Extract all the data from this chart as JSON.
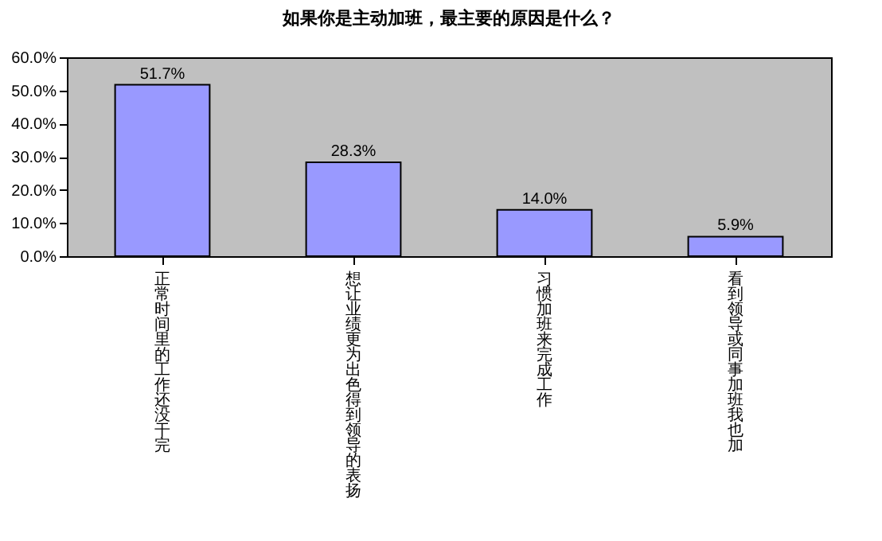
{
  "chart_data": {
    "type": "bar",
    "title": "如果你是主动加班，最主要的原因是什么？",
    "categories": [
      "正常时间里的工作还没干完",
      "想让业绩更为出色得到领导的表扬",
      "习惯加班来完成工作",
      "看到领导或同事加班我也加"
    ],
    "values": [
      51.7,
      28.3,
      14.0,
      5.9
    ],
    "value_labels": [
      "51.7%",
      "28.3%",
      "14.0%",
      "5.9%"
    ],
    "color": "#9999ff",
    "ylim": [
      0,
      60
    ],
    "yticks": [
      {
        "value": 0,
        "label": "0.0%"
      },
      {
        "value": 10,
        "label": "10.0%"
      },
      {
        "value": 20,
        "label": "20.0%"
      },
      {
        "value": 30,
        "label": "30.0%"
      },
      {
        "value": 40,
        "label": "40.0%"
      },
      {
        "value": 50,
        "label": "50.0%"
      },
      {
        "value": 60,
        "label": "60.0%"
      }
    ],
    "grid": false
  }
}
